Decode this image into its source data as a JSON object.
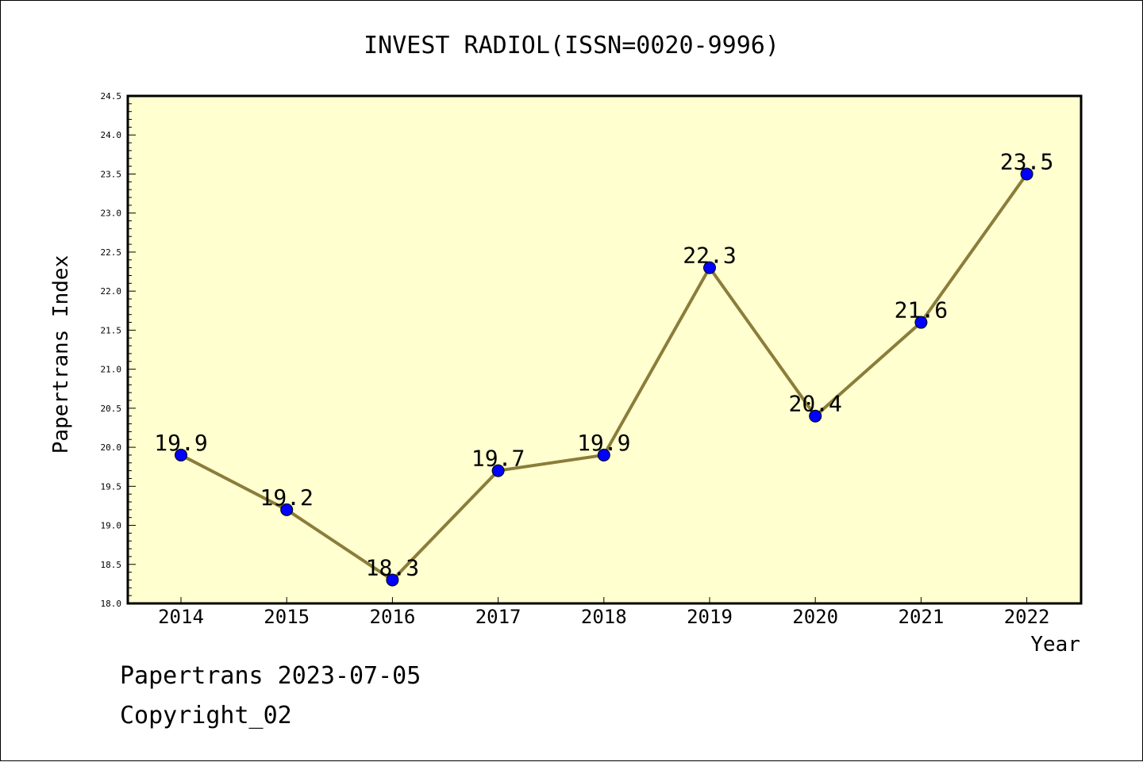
{
  "chart_data": {
    "type": "line",
    "title": "INVEST RADIOL(ISSN=0020-9996)",
    "xlabel": "Year",
    "ylabel": "Papertrans Index",
    "categories": [
      "2014",
      "2015",
      "2016",
      "2017",
      "2018",
      "2019",
      "2020",
      "2021",
      "2022"
    ],
    "series": [
      {
        "values": [
          19.9,
          19.2,
          18.3,
          19.7,
          19.9,
          22.3,
          20.4,
          21.6,
          23.5
        ]
      }
    ],
    "data_labels": [
      "19.9",
      "19.2",
      "18.3",
      "19.7",
      "19.9",
      "22.3",
      "20.4",
      "21.6",
      "23.5"
    ],
    "ylim": [
      18.0,
      24.5
    ],
    "y_ticks": [
      "18.0",
      "18.5",
      "19.0",
      "19.5",
      "20.0",
      "20.5",
      "21.0",
      "21.5",
      "22.0",
      "22.5",
      "23.0",
      "23.5",
      "24.0",
      "24.5"
    ],
    "y_minor_step": 0.1,
    "grid": false,
    "legend": "none",
    "colors": {
      "plot_background": "#ffffd0",
      "line": "#8b7d3a",
      "marker": "#0000ff",
      "axis": "#000000"
    }
  },
  "footer": {
    "line1": "Papertrans 2023-07-05",
    "line2": "Copyright_02"
  }
}
